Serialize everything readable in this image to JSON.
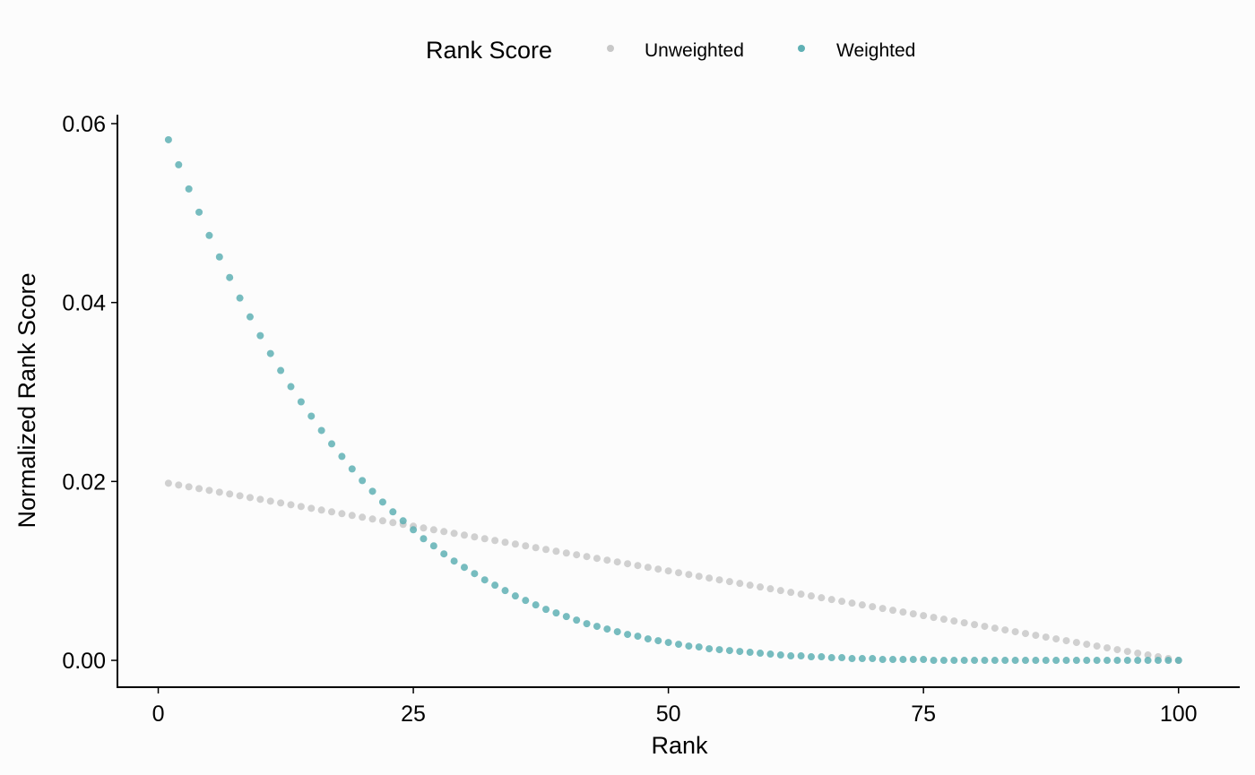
{
  "chart_data": {
    "type": "scatter",
    "title": "",
    "xlabel": "Rank",
    "ylabel": "Normalized Rank Score",
    "xlim": [
      -4,
      106
    ],
    "ylim": [
      -0.003,
      0.061
    ],
    "x_ticks": [
      0,
      25,
      50,
      75,
      100
    ],
    "x_tick_labels": [
      "0",
      "25",
      "50",
      "75",
      "100"
    ],
    "y_ticks": [
      0,
      0.02,
      0.04,
      0.06
    ],
    "y_tick_labels": [
      "0.00",
      "0.02",
      "0.04",
      "0.06"
    ],
    "grid": false,
    "legend": {
      "title": "Rank Score",
      "position": "top",
      "entries": [
        "Unweighted",
        "Weighted"
      ]
    },
    "series": [
      {
        "name": "Unweighted",
        "color": "#c8c8c8",
        "x": [
          1,
          2,
          3,
          4,
          5,
          6,
          7,
          8,
          9,
          10,
          11,
          12,
          13,
          14,
          15,
          16,
          17,
          18,
          19,
          20,
          21,
          22,
          23,
          24,
          25,
          26,
          27,
          28,
          29,
          30,
          31,
          32,
          33,
          34,
          35,
          36,
          37,
          38,
          39,
          40,
          41,
          42,
          43,
          44,
          45,
          46,
          47,
          48,
          49,
          50,
          51,
          52,
          53,
          54,
          55,
          56,
          57,
          58,
          59,
          60,
          61,
          62,
          63,
          64,
          65,
          66,
          67,
          68,
          69,
          70,
          71,
          72,
          73,
          74,
          75,
          76,
          77,
          78,
          79,
          80,
          81,
          82,
          83,
          84,
          85,
          86,
          87,
          88,
          89,
          90,
          91,
          92,
          93,
          94,
          95,
          96,
          97,
          98,
          99,
          100
        ],
        "y": [
          0.0198,
          0.0196,
          0.0194,
          0.0192,
          0.019,
          0.0188,
          0.0186,
          0.0184,
          0.0182,
          0.018,
          0.0178,
          0.0176,
          0.0174,
          0.0172,
          0.017,
          0.0168,
          0.0166,
          0.0164,
          0.0162,
          0.016,
          0.0158,
          0.0156,
          0.0154,
          0.0152,
          0.015,
          0.0148,
          0.0146,
          0.0144,
          0.0142,
          0.014,
          0.0138,
          0.0136,
          0.0134,
          0.0132,
          0.013,
          0.0128,
          0.0126,
          0.0124,
          0.0122,
          0.012,
          0.0118,
          0.0116,
          0.0114,
          0.0112,
          0.011,
          0.0108,
          0.0106,
          0.0104,
          0.0102,
          0.01,
          0.0098,
          0.0096,
          0.0094,
          0.0092,
          0.009,
          0.0088,
          0.0086,
          0.0084,
          0.0082,
          0.008,
          0.0078,
          0.0076,
          0.0074,
          0.0072,
          0.007,
          0.0068,
          0.0066,
          0.0064,
          0.0062,
          0.006,
          0.0058,
          0.0056,
          0.0054,
          0.0052,
          0.005,
          0.0048,
          0.0046,
          0.0044,
          0.0042,
          0.004,
          0.0038,
          0.0036,
          0.0034,
          0.0032,
          0.003,
          0.0028,
          0.0026,
          0.0024,
          0.0022,
          0.002,
          0.0018,
          0.0016,
          0.0014,
          0.0012,
          0.001,
          0.0008,
          0.0006,
          0.0004,
          0.0002,
          0.0
        ]
      },
      {
        "name": "Weighted",
        "color": "#5fb0b4",
        "x": [
          1,
          2,
          3,
          4,
          5,
          6,
          7,
          8,
          9,
          10,
          11,
          12,
          13,
          14,
          15,
          16,
          17,
          18,
          19,
          20,
          21,
          22,
          23,
          24,
          25,
          26,
          27,
          28,
          29,
          30,
          31,
          32,
          33,
          34,
          35,
          36,
          37,
          38,
          39,
          40,
          41,
          42,
          43,
          44,
          45,
          46,
          47,
          48,
          49,
          50,
          51,
          52,
          53,
          54,
          55,
          56,
          57,
          58,
          59,
          60,
          61,
          62,
          63,
          64,
          65,
          66,
          67,
          68,
          69,
          70,
          71,
          72,
          73,
          74,
          75,
          76,
          77,
          78,
          79,
          80,
          81,
          82,
          83,
          84,
          85,
          86,
          87,
          88,
          89,
          90,
          91,
          92,
          93,
          94,
          95,
          96,
          97,
          98,
          99,
          100
        ],
        "y": [
          0.0582,
          0.0554,
          0.0527,
          0.0501,
          0.0475,
          0.0451,
          0.0428,
          0.0405,
          0.0384,
          0.0363,
          0.0343,
          0.0324,
          0.0306,
          0.0289,
          0.0273,
          0.0257,
          0.0242,
          0.0228,
          0.0214,
          0.0201,
          0.0189,
          0.0177,
          0.0166,
          0.0156,
          0.0146,
          0.0136,
          0.0128,
          0.0119,
          0.0111,
          0.0104,
          0.0097,
          0.009,
          0.0084,
          0.0078,
          0.0072,
          0.0067,
          0.0062,
          0.0057,
          0.0053,
          0.0049,
          0.0045,
          0.0041,
          0.0038,
          0.0035,
          0.0032,
          0.0029,
          0.0027,
          0.0024,
          0.0022,
          0.002,
          0.0018,
          0.0016,
          0.0015,
          0.0013,
          0.0012,
          0.0011,
          0.001,
          0.0009,
          0.0008,
          0.0007,
          0.0006,
          0.0005,
          0.0005,
          0.0004,
          0.0004,
          0.0003,
          0.0003,
          0.0002,
          0.0002,
          0.0002,
          0.0001,
          0.0001,
          0.0001,
          0.0001,
          0.0001,
          0.0,
          0.0,
          0.0,
          0.0,
          0.0,
          0.0,
          0.0,
          0.0,
          0.0,
          0.0,
          0.0,
          0.0,
          0.0,
          0.0,
          0.0,
          0.0,
          0.0,
          0.0,
          0.0,
          0.0,
          0.0,
          0.0,
          0.0,
          0.0,
          0.0
        ]
      }
    ]
  }
}
